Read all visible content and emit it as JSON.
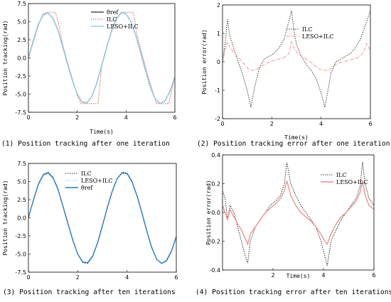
{
  "figure": {
    "captions": [
      "(1) Position tracking after one iteration",
      "(2) Position tracking error after one iteration",
      "(3) Position tracking after ten iterations",
      "(4) Position tracking error after ten iterations"
    ]
  },
  "colors": {
    "ref": "#4d4d4d",
    "ilc": "#e8484c",
    "leso_ilc_light": "#8ed0e8",
    "leso_ilc_blue": "#1f78c8",
    "ilc_black": "#222222",
    "leso_pink": "#f08a8a"
  },
  "chart_data": [
    {
      "type": "line",
      "caption": "(1) Position tracking after one iteration",
      "xlabel": "Time(s)",
      "ylabel": "Position tracking(rad)",
      "xlim": [
        0,
        6
      ],
      "ylim": [
        -7.5,
        7.5
      ],
      "xticks": [
        0,
        2,
        4,
        6
      ],
      "yticks": [
        -7.5,
        -5.0,
        -2.5,
        0.0,
        2.5,
        5.0,
        7.5
      ],
      "legend_position": "top-right",
      "series": [
        {
          "name": "θref",
          "style": "solid",
          "color": "#4d4d4d",
          "x": [
            0,
            0.2,
            0.4,
            0.6,
            0.8,
            1.0,
            1.2,
            1.4,
            1.6,
            1.8,
            2.0,
            2.2,
            2.4,
            2.6,
            2.8,
            3.0,
            3.2,
            3.4,
            3.6,
            3.8,
            4.0,
            4.2,
            4.4,
            4.6,
            4.8,
            5.0,
            5.2,
            5.4,
            5.6,
            5.8,
            6.0
          ],
          "y": [
            0,
            2.4,
            4.6,
            5.9,
            6.2,
            5.5,
            3.9,
            1.6,
            -0.8,
            -3.1,
            -5.0,
            -6.1,
            -6.2,
            -5.3,
            -3.5,
            -1.1,
            1.4,
            3.7,
            5.4,
            6.2,
            6.1,
            5.0,
            3.1,
            0.7,
            -1.8,
            -4.1,
            -5.7,
            -6.3,
            -5.9,
            -4.6,
            -2.6
          ]
        },
        {
          "name": "ILC",
          "style": "dotted",
          "color": "#e8484c",
          "x": [
            0,
            0.2,
            0.4,
            0.6,
            0.75,
            0.95,
            1.1,
            1.25,
            1.4,
            1.6,
            1.8,
            2.0,
            2.15,
            2.35,
            2.55,
            2.7,
            2.85,
            3.0,
            3.2,
            3.4,
            3.6,
            3.8,
            4.0,
            4.15,
            4.3,
            4.45,
            4.65,
            4.85,
            5.05,
            5.25,
            5.5,
            5.75,
            6.0
          ],
          "y": [
            0,
            2.2,
            4.4,
            6.1,
            6.3,
            6.3,
            6.3,
            4.6,
            1.9,
            -0.6,
            -2.9,
            -5.2,
            -6.3,
            -6.3,
            -6.3,
            -6.3,
            -6.3,
            -1.2,
            1.3,
            3.6,
            5.3,
            6.3,
            6.3,
            6.3,
            6.3,
            3.2,
            0.6,
            -1.9,
            -4.2,
            -6.3,
            -6.3,
            -6.3,
            -2.6
          ]
        },
        {
          "name": "LESO+ILC",
          "style": "solid",
          "color": "#8ed0e8",
          "x": [
            0,
            0.2,
            0.4,
            0.6,
            0.8,
            1.0,
            1.2,
            1.4,
            1.6,
            1.8,
            2.0,
            2.2,
            2.4,
            2.6,
            2.8,
            3.0,
            3.2,
            3.4,
            3.6,
            3.8,
            4.0,
            4.2,
            4.4,
            4.6,
            4.8,
            5.0,
            5.2,
            5.4,
            5.6,
            5.8,
            6.0
          ],
          "y": [
            0,
            2.4,
            4.6,
            5.9,
            6.2,
            5.5,
            3.9,
            1.6,
            -0.8,
            -3.1,
            -5.0,
            -6.1,
            -6.2,
            -5.3,
            -3.5,
            -1.1,
            1.4,
            3.7,
            5.4,
            6.2,
            6.1,
            5.0,
            3.1,
            0.7,
            -1.8,
            -4.1,
            -5.7,
            -6.3,
            -5.9,
            -4.6,
            -2.6
          ]
        }
      ]
    },
    {
      "type": "line",
      "caption": "(2) Position tracking error after one iteration",
      "xlabel": "Time(s)",
      "ylabel": "Position error(rad)",
      "xlim": [
        0,
        6
      ],
      "ylim": [
        -2,
        2
      ],
      "xticks": [
        0,
        2,
        4,
        6
      ],
      "yticks": [
        -2,
        -1,
        0,
        1,
        2
      ],
      "legend_position": "top-right",
      "series": [
        {
          "name": "ILC",
          "style": "dotted",
          "color": "#333333",
          "x": [
            0,
            0.1,
            0.2,
            0.3,
            0.45,
            0.6,
            0.8,
            1.0,
            1.15,
            1.3,
            1.5,
            1.7,
            1.9,
            2.1,
            2.3,
            2.5,
            2.65,
            2.8,
            2.9,
            3.0,
            3.2,
            3.4,
            3.6,
            3.8,
            4.0,
            4.15,
            4.3,
            4.4,
            4.6,
            4.8,
            5.0,
            5.2,
            5.4,
            5.6,
            5.8,
            6.0
          ],
          "y": [
            0,
            0.6,
            1.5,
            0.9,
            0.5,
            0.1,
            -0.4,
            -1.0,
            -1.6,
            -0.9,
            -0.2,
            0.1,
            0.2,
            0.3,
            0.5,
            0.8,
            1.3,
            1.8,
            1.1,
            0.6,
            0.2,
            -0.1,
            -0.3,
            -0.6,
            -1.1,
            -1.6,
            -0.9,
            -0.4,
            0.0,
            0.1,
            0.2,
            0.3,
            0.5,
            0.8,
            1.3,
            1.8
          ]
        },
        {
          "name": "LESO+ILC",
          "style": "dashdot",
          "color": "#f08a8a",
          "x": [
            0,
            0.1,
            0.2,
            0.3,
            0.5,
            0.7,
            0.9,
            1.1,
            1.3,
            1.5,
            1.7,
            1.9,
            2.1,
            2.3,
            2.5,
            2.7,
            2.8,
            2.95,
            3.1,
            3.3,
            3.5,
            3.7,
            3.9,
            4.1,
            4.3,
            4.5,
            4.7,
            4.9,
            5.1,
            5.3,
            5.5,
            5.7,
            5.85,
            6.0
          ],
          "y": [
            0,
            0.4,
            0.7,
            0.5,
            0.3,
            0.1,
            -0.1,
            -0.3,
            -0.3,
            -0.2,
            -0.1,
            0.0,
            0.05,
            0.1,
            0.15,
            0.3,
            0.7,
            0.4,
            0.25,
            0.15,
            0.05,
            -0.1,
            -0.25,
            -0.3,
            -0.3,
            -0.15,
            -0.05,
            0.0,
            0.05,
            0.1,
            0.15,
            0.3,
            0.65,
            0.4
          ]
        }
      ]
    },
    {
      "type": "line",
      "caption": "(3) Position tracking after ten iterations",
      "xlabel": "",
      "ylabel": "Position tracking(rad)",
      "xlim": [
        0,
        6
      ],
      "ylim": [
        -7.5,
        7.5
      ],
      "xticks": [
        0,
        2,
        4,
        6
      ],
      "yticks": [
        -7.5,
        -5.0,
        -2.5,
        0.0,
        2.5,
        5.0,
        7.5
      ],
      "legend_position": "top-right",
      "series": [
        {
          "name": "ILC",
          "style": "dotted",
          "color": "#222222",
          "x": [
            0,
            0.2,
            0.4,
            0.6,
            0.8,
            1.0,
            1.2,
            1.4,
            1.6,
            1.8,
            2.0,
            2.2,
            2.4,
            2.6,
            2.8,
            3.0,
            3.2,
            3.4,
            3.6,
            3.8,
            4.0,
            4.2,
            4.4,
            4.6,
            4.8,
            5.0,
            5.2,
            5.4,
            5.6,
            5.8,
            6.0
          ],
          "y": [
            0,
            2.5,
            4.7,
            6.0,
            6.3,
            5.6,
            4.0,
            1.7,
            -0.7,
            -3.0,
            -5.0,
            -6.2,
            -6.3,
            -5.4,
            -3.6,
            -1.2,
            1.3,
            3.6,
            5.4,
            6.3,
            6.2,
            5.1,
            3.2,
            0.8,
            -1.7,
            -4.0,
            -5.7,
            -6.3,
            -6.0,
            -4.7,
            -2.7
          ]
        },
        {
          "name": "LESO+ILC",
          "style": "dotted",
          "color": "#8ed0e8",
          "x": [
            0,
            0.2,
            0.4,
            0.6,
            0.8,
            1.0,
            1.2,
            1.4,
            1.6,
            1.8,
            2.0,
            2.2,
            2.4,
            2.6,
            2.8,
            3.0,
            3.2,
            3.4,
            3.6,
            3.8,
            4.0,
            4.2,
            4.4,
            4.6,
            4.8,
            5.0,
            5.2,
            5.4,
            5.6,
            5.8,
            6.0
          ],
          "y": [
            0,
            2.4,
            4.6,
            5.9,
            6.2,
            5.5,
            3.9,
            1.6,
            -0.8,
            -3.1,
            -5.0,
            -6.1,
            -6.2,
            -5.3,
            -3.5,
            -1.1,
            1.4,
            3.7,
            5.4,
            6.2,
            6.1,
            5.0,
            3.1,
            0.7,
            -1.8,
            -4.1,
            -5.7,
            -6.3,
            -5.9,
            -4.6,
            -2.6
          ]
        },
        {
          "name": "θref",
          "style": "solid",
          "color": "#1f78c8",
          "x": [
            0,
            0.2,
            0.4,
            0.6,
            0.8,
            1.0,
            1.2,
            1.4,
            1.6,
            1.8,
            2.0,
            2.2,
            2.4,
            2.6,
            2.8,
            3.0,
            3.2,
            3.4,
            3.6,
            3.8,
            4.0,
            4.2,
            4.4,
            4.6,
            4.8,
            5.0,
            5.2,
            5.4,
            5.6,
            5.8,
            6.0
          ],
          "y": [
            0,
            2.4,
            4.6,
            5.9,
            6.2,
            5.5,
            3.9,
            1.6,
            -0.8,
            -3.1,
            -5.0,
            -6.1,
            -6.2,
            -5.3,
            -3.5,
            -1.1,
            1.4,
            3.7,
            5.4,
            6.2,
            6.1,
            5.0,
            3.1,
            0.7,
            -1.8,
            -4.1,
            -5.7,
            -6.3,
            -5.9,
            -4.6,
            -2.6
          ]
        }
      ]
    },
    {
      "type": "line",
      "caption": "(4) Position tracking error after ten iterations",
      "xlabel": "Time(s)",
      "ylabel": "Position error(rad)",
      "xlim": [
        0,
        6
      ],
      "ylim": [
        -0.4,
        0.4
      ],
      "xticks": [
        2,
        4,
        6
      ],
      "yticks": [
        -0.4,
        -0.2,
        0.0,
        0.2,
        0.4
      ],
      "legend_position": "top-right",
      "series": [
        {
          "name": "ILC",
          "style": "dotted",
          "color": "#222222",
          "x": [
            0,
            0.1,
            0.2,
            0.3,
            0.45,
            0.6,
            0.75,
            0.9,
            1.0,
            1.1,
            1.3,
            1.5,
            1.7,
            1.9,
            2.1,
            2.3,
            2.45,
            2.55,
            2.7,
            2.9,
            3.1,
            3.3,
            3.5,
            3.7,
            3.9,
            4.05,
            4.15,
            4.3,
            4.5,
            4.7,
            4.9,
            5.1,
            5.3,
            5.45,
            5.55,
            5.65,
            5.8,
            6.0
          ],
          "y": [
            0.15,
            0.1,
            -0.05,
            0.05,
            0.0,
            -0.1,
            -0.2,
            -0.3,
            -0.35,
            -0.2,
            -0.1,
            -0.05,
            0.0,
            0.05,
            0.08,
            0.12,
            0.2,
            0.35,
            0.2,
            0.12,
            0.05,
            0.0,
            -0.05,
            -0.1,
            -0.2,
            -0.3,
            -0.37,
            -0.2,
            -0.12,
            -0.05,
            0.0,
            0.05,
            0.1,
            0.18,
            0.35,
            0.2,
            0.1,
            0.05
          ]
        },
        {
          "name": "LESO+ILC",
          "style": "solid",
          "color": "#f08a8a",
          "x": [
            0,
            0.1,
            0.2,
            0.3,
            0.45,
            0.6,
            0.75,
            0.9,
            1.0,
            1.1,
            1.3,
            1.5,
            1.7,
            1.9,
            2.1,
            2.3,
            2.45,
            2.55,
            2.7,
            2.9,
            3.1,
            3.3,
            3.5,
            3.7,
            3.9,
            4.05,
            4.15,
            4.3,
            4.5,
            4.7,
            4.9,
            5.1,
            5.3,
            5.45,
            5.55,
            5.65,
            5.8,
            6.0
          ],
          "y": [
            0.05,
            0.0,
            -0.05,
            0.02,
            -0.03,
            -0.08,
            -0.12,
            -0.18,
            -0.22,
            -0.15,
            -0.1,
            -0.05,
            0.0,
            0.03,
            0.06,
            0.1,
            0.15,
            0.22,
            0.12,
            0.05,
            0.0,
            -0.03,
            -0.06,
            -0.1,
            -0.15,
            -0.2,
            -0.22,
            -0.15,
            -0.08,
            -0.03,
            0.0,
            0.04,
            0.08,
            0.14,
            0.22,
            0.12,
            0.05,
            0.02
          ]
        }
      ]
    }
  ]
}
